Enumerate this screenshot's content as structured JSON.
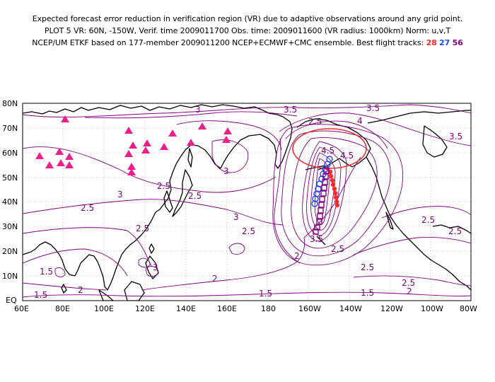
{
  "header": {
    "line1": "Expected forecast error reduction in verification region (VR) due to adaptive observations around any grid point.",
    "line2": "PLOT 5 VR: 60N, -150W, Verif. time 2009011700 Obs. time: 2009011600 (VR radius: 1000km) Norm: u,v,T",
    "line3_prefix": "NCEP/UM ETKF based on 177-member 2009011200 NCEP+ECMWF+CMC ensemble. Best flight tracks:",
    "track_a": "28",
    "track_b": "27",
    "track_c": "56"
  },
  "map": {
    "lat_labels": [
      "80N",
      "70N",
      "60N",
      "50N",
      "40N",
      "30N",
      "20N",
      "10N",
      "EQ"
    ],
    "lon_labels": [
      "60E",
      "80E",
      "100E",
      "120E",
      "140E",
      "160E",
      "180",
      "160W",
      "140W",
      "120W",
      "100W",
      "80W"
    ],
    "contour_labels": [
      "3",
      "3.5",
      "3.5",
      "4",
      "3.5",
      "3",
      "3",
      "2.5",
      "2.5",
      "2.5",
      "2.5",
      "3",
      "2.5",
      "4.5",
      "4.5",
      "3.5",
      "2.5",
      "2",
      "2",
      "1.5",
      "1.5",
      "1.5",
      "2",
      "2",
      "2.5",
      "2.5",
      "2.5",
      "1.5",
      "3",
      "2",
      "2.5",
      "2.5"
    ],
    "colors": {
      "contour": "#800080",
      "coast": "#000000",
      "verification_circle": "#e83030",
      "track_28": "#ff2a2a",
      "track_27": "#2244ff",
      "track_56": "#800080",
      "raob_marker": "#ee1f8c",
      "grid": "#888888"
    },
    "icons": {
      "raob_site": "triangle-marker-icon",
      "track_28": "filled-dot-icon",
      "track_27": "open-circle-icon",
      "track_56": "open-square-icon"
    }
  }
}
